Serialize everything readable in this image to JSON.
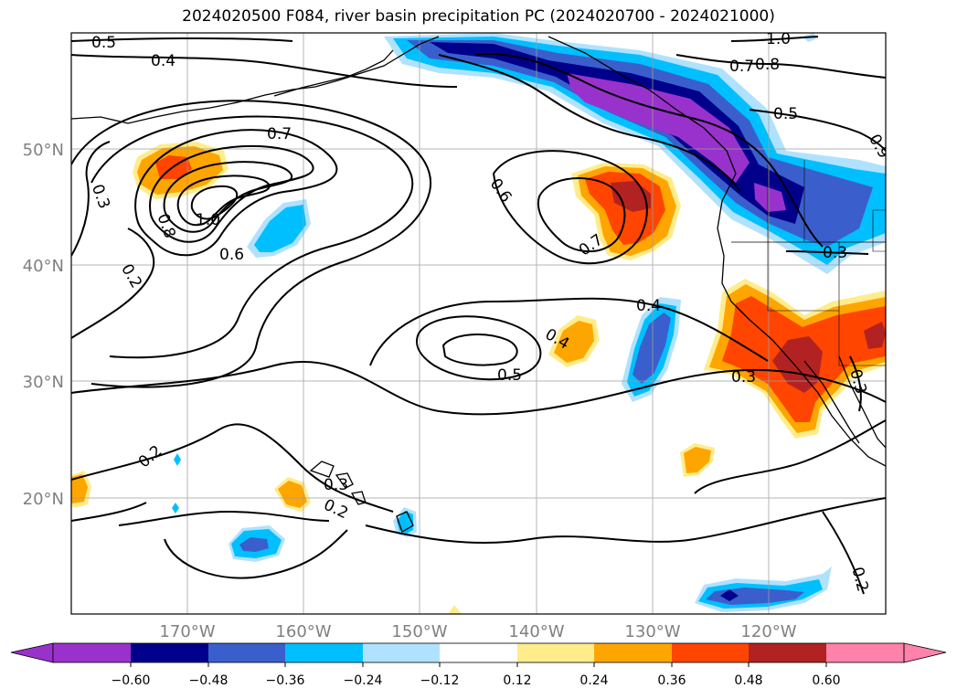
{
  "title": "2024020500 F084, river basin precipitation PC (2024020700 - 2024021000)",
  "map": {
    "lat_labels": [
      "50°N",
      "40°N",
      "30°N",
      "20°N"
    ],
    "lon_labels": [
      "170°W",
      "160°W",
      "150°W",
      "140°W",
      "130°W",
      "120°W"
    ],
    "contour_labels": [
      "0.5",
      "0.4",
      "1.0",
      "0.7",
      "0.8",
      "0.5",
      "0.7",
      "0.3",
      "0.8",
      "1.0",
      "0.6",
      "0.2",
      "0.6",
      "0.7",
      "0.4",
      "0.4",
      "0.5",
      "0.3",
      "0.3",
      "0.2",
      "0.3",
      "0.2",
      "0.2",
      "0.3",
      "0.9"
    ],
    "colors": {
      "neg_060": "#9932CC",
      "neg_048": "#00008B",
      "neg_036": "#3A5FCD",
      "neg_024": "#00BFFF",
      "neg_012": "#B0E2FF",
      "pos_012": "#FFEC8B",
      "pos_024": "#FFA500",
      "pos_036": "#FF4500",
      "pos_048": "#B22222",
      "pos_060": "#FF82AB"
    }
  },
  "colorbar": {
    "ticks": [
      "−0.60",
      "−0.48",
      "−0.36",
      "−0.24",
      "−0.12",
      "0.12",
      "0.24",
      "0.36",
      "0.48",
      "0.60"
    ],
    "bins": [
      "#9932CC",
      "#00008B",
      "#3A5FCD",
      "#00BFFF",
      "#B0E2FF",
      "#FFFFFF",
      "#FFEC8B",
      "#FFA500",
      "#FF4500",
      "#B22222",
      "#FF82AB"
    ]
  }
}
